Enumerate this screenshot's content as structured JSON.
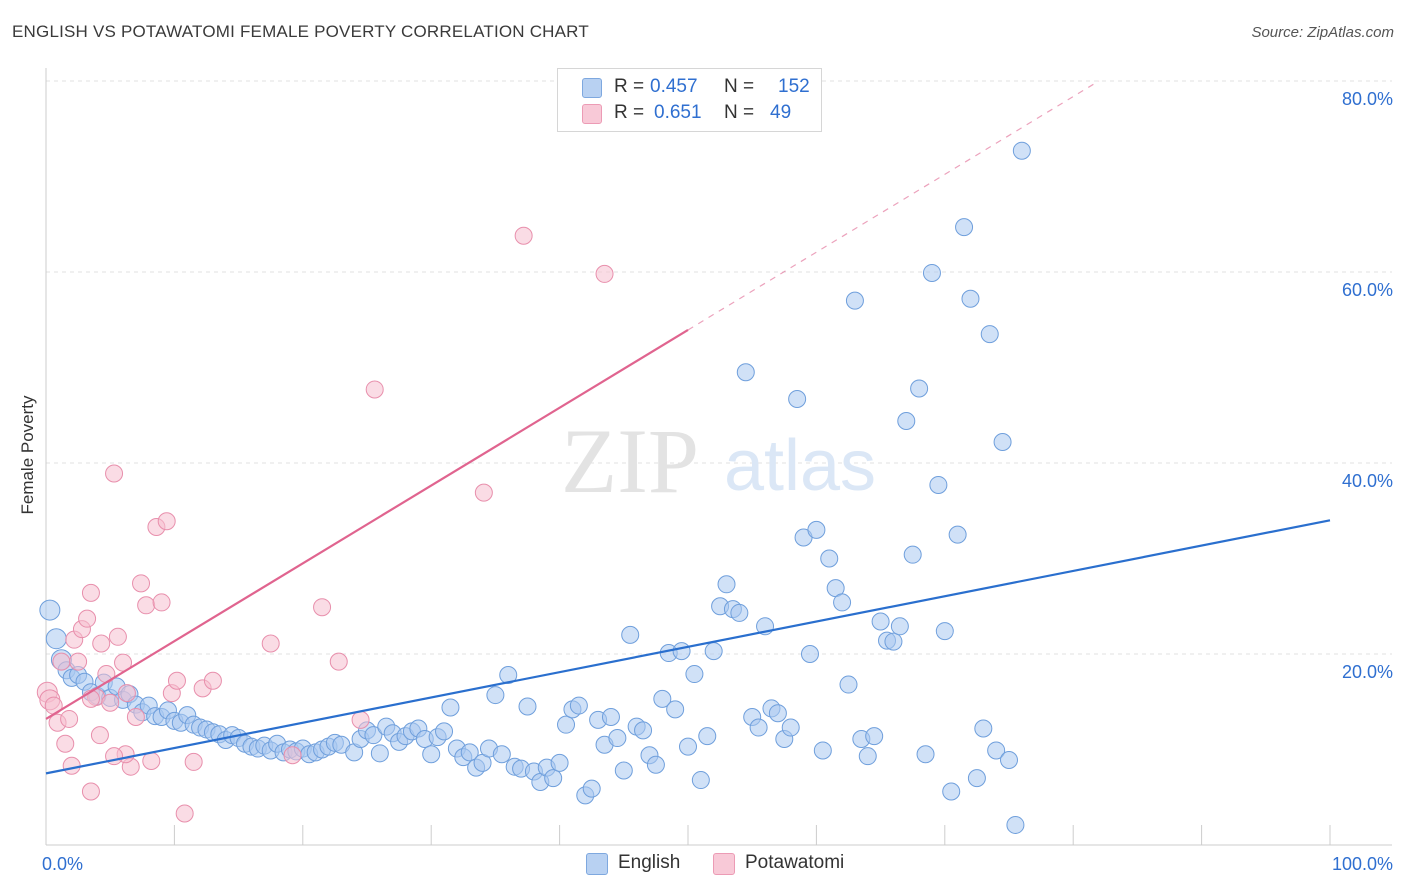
{
  "title": "ENGLISH VS POTAWATOMI FEMALE POVERTY CORRELATION CHART",
  "source": "Source: ZipAtlas.com",
  "watermark": {
    "zip": "ZIP",
    "atlas": "atlas"
  },
  "legend": {
    "rows": [
      {
        "r_label": "R =",
        "r_value": "0.457",
        "n_label": "N =",
        "n_value": "152"
      },
      {
        "r_label": "R =",
        "r_value": "0.651",
        "n_label": "N =",
        "n_value": "49"
      }
    ]
  },
  "bottom_legend": [
    {
      "label": "English"
    },
    {
      "label": "Potawatomi"
    }
  ],
  "chart_data": {
    "type": "scatter",
    "ylabel": "Female Poverty",
    "xlabel": "",
    "xlim": [
      0,
      100
    ],
    "ylim": [
      0,
      82
    ],
    "x_tick_labels": [
      "0.0%",
      "100.0%"
    ],
    "y_ticks": [
      {
        "value": 20,
        "label": "20.0%"
      },
      {
        "value": 40,
        "label": "40.0%"
      },
      {
        "value": 60,
        "label": "60.0%"
      },
      {
        "value": 80,
        "label": "80.0%"
      }
    ],
    "grid": true,
    "legend_position": "top-center",
    "series": [
      {
        "name": "English",
        "color": "#a9c8f0",
        "stroke": "#6f9fdc",
        "trend_color": "#2a6fce",
        "trend": {
          "x1": 0,
          "y1": 7.5,
          "x2": 100,
          "y2": 34.0,
          "dash_from": null
        },
        "points": [
          [
            0.3,
            24.6
          ],
          [
            0.8,
            21.6
          ],
          [
            1.2,
            19.4
          ],
          [
            1.6,
            18.3
          ],
          [
            2,
            17.5
          ],
          [
            2.5,
            17.8
          ],
          [
            3,
            17.1
          ],
          [
            3.5,
            16.0
          ],
          [
            4,
            15.6
          ],
          [
            4.5,
            17.0
          ],
          [
            5,
            15.4
          ],
          [
            5.5,
            16.6
          ],
          [
            6,
            15.2
          ],
          [
            6.5,
            15.8
          ],
          [
            7,
            14.7
          ],
          [
            7.5,
            13.9
          ],
          [
            8,
            14.6
          ],
          [
            8.5,
            13.5
          ],
          [
            9,
            13.4
          ],
          [
            9.5,
            14.1
          ],
          [
            10,
            13.0
          ],
          [
            10.5,
            12.8
          ],
          [
            11,
            13.6
          ],
          [
            11.5,
            12.6
          ],
          [
            12,
            12.3
          ],
          [
            12.5,
            12.1
          ],
          [
            13,
            11.8
          ],
          [
            13.5,
            11.6
          ],
          [
            14,
            11.0
          ],
          [
            14.5,
            11.5
          ],
          [
            15,
            11.2
          ],
          [
            15.5,
            10.6
          ],
          [
            16,
            10.3
          ],
          [
            16.5,
            10.1
          ],
          [
            17,
            10.4
          ],
          [
            17.5,
            9.9
          ],
          [
            18,
            10.6
          ],
          [
            18.5,
            9.7
          ],
          [
            19,
            10.0
          ],
          [
            19.5,
            9.8
          ],
          [
            20,
            10.1
          ],
          [
            20.5,
            9.5
          ],
          [
            21,
            9.7
          ],
          [
            21.5,
            10.0
          ],
          [
            22,
            10.3
          ],
          [
            22.5,
            10.7
          ],
          [
            23,
            10.5
          ],
          [
            24,
            9.7
          ],
          [
            24.5,
            11.1
          ],
          [
            25,
            12.0
          ],
          [
            25.5,
            11.5
          ],
          [
            26,
            9.6
          ],
          [
            26.5,
            12.4
          ],
          [
            27,
            11.7
          ],
          [
            27.5,
            10.8
          ],
          [
            28,
            11.4
          ],
          [
            28.5,
            11.9
          ],
          [
            29,
            12.2
          ],
          [
            29.5,
            11.1
          ],
          [
            30,
            9.5
          ],
          [
            30.5,
            11.3
          ],
          [
            31,
            11.9
          ],
          [
            31.5,
            14.4
          ],
          [
            32,
            10.1
          ],
          [
            32.5,
            9.2
          ],
          [
            33,
            9.7
          ],
          [
            33.5,
            8.1
          ],
          [
            34,
            8.6
          ],
          [
            34.5,
            10.1
          ],
          [
            35,
            15.7
          ],
          [
            35.5,
            9.5
          ],
          [
            36,
            17.8
          ],
          [
            36.5,
            8.2
          ],
          [
            37,
            8.0
          ],
          [
            37.5,
            14.5
          ],
          [
            38,
            7.7
          ],
          [
            38.5,
            6.6
          ],
          [
            39,
            8.1
          ],
          [
            39.5,
            7.0
          ],
          [
            40,
            8.6
          ],
          [
            40.5,
            12.6
          ],
          [
            41,
            14.2
          ],
          [
            41.5,
            14.6
          ],
          [
            42,
            5.2
          ],
          [
            42.5,
            5.9
          ],
          [
            43,
            13.1
          ],
          [
            43.5,
            10.5
          ],
          [
            44,
            13.4
          ],
          [
            44.5,
            11.2
          ],
          [
            45,
            7.8
          ],
          [
            45.5,
            22.0
          ],
          [
            46,
            12.4
          ],
          [
            46.5,
            12.0
          ],
          [
            47,
            9.4
          ],
          [
            47.5,
            8.4
          ],
          [
            48,
            15.3
          ],
          [
            48.5,
            20.1
          ],
          [
            49,
            14.2
          ],
          [
            49.5,
            20.3
          ],
          [
            50,
            10.3
          ],
          [
            50.5,
            17.9
          ],
          [
            51,
            6.8
          ],
          [
            51.5,
            11.4
          ],
          [
            52,
            20.3
          ],
          [
            52.5,
            25.0
          ],
          [
            53,
            27.3
          ],
          [
            53.5,
            24.7
          ],
          [
            54,
            24.3
          ],
          [
            54.5,
            49.5
          ],
          [
            55,
            13.4
          ],
          [
            55.5,
            12.3
          ],
          [
            56,
            22.9
          ],
          [
            56.5,
            14.3
          ],
          [
            57,
            13.8
          ],
          [
            57.5,
            11.1
          ],
          [
            58,
            12.3
          ],
          [
            58.5,
            46.7
          ],
          [
            59,
            32.2
          ],
          [
            59.5,
            20.0
          ],
          [
            60,
            33.0
          ],
          [
            60.5,
            9.9
          ],
          [
            61,
            30.0
          ],
          [
            61.5,
            26.9
          ],
          [
            62,
            25.4
          ],
          [
            62.5,
            16.8
          ],
          [
            63,
            57.0
          ],
          [
            63.5,
            11.1
          ],
          [
            64,
            9.3
          ],
          [
            64.5,
            11.4
          ],
          [
            65,
            23.4
          ],
          [
            65.5,
            21.4
          ],
          [
            66,
            21.3
          ],
          [
            66.5,
            22.9
          ],
          [
            67,
            44.4
          ],
          [
            67.5,
            30.4
          ],
          [
            68,
            47.8
          ],
          [
            68.5,
            9.5
          ],
          [
            69,
            59.9
          ],
          [
            69.5,
            37.7
          ],
          [
            70,
            22.4
          ],
          [
            70.5,
            5.6
          ],
          [
            71,
            32.5
          ],
          [
            71.5,
            64.7
          ],
          [
            72,
            57.2
          ],
          [
            72.5,
            7.0
          ],
          [
            73,
            12.2
          ],
          [
            73.5,
            53.5
          ],
          [
            74,
            9.9
          ],
          [
            74.5,
            42.2
          ],
          [
            75,
            8.9
          ],
          [
            75.5,
            2.1
          ],
          [
            76,
            72.7
          ]
        ]
      },
      {
        "name": "Potawatomi",
        "color": "#f6bfd0",
        "stroke": "#e88fac",
        "trend_color": "#e0648f",
        "trend": {
          "x1": 0,
          "y1": 13.2,
          "x2": 82,
          "y2": 80.0,
          "dash_from": 50
        },
        "points": [
          [
            0.1,
            16.0
          ],
          [
            0.3,
            15.2
          ],
          [
            0.6,
            14.6
          ],
          [
            0.9,
            12.8
          ],
          [
            1.2,
            19.2
          ],
          [
            1.5,
            10.6
          ],
          [
            1.8,
            13.2
          ],
          [
            2.2,
            21.5
          ],
          [
            2.5,
            19.2
          ],
          [
            2.8,
            22.6
          ],
          [
            3.2,
            23.7
          ],
          [
            3.5,
            26.4
          ],
          [
            3.9,
            15.5
          ],
          [
            4.3,
            21.1
          ],
          [
            4.7,
            17.9
          ],
          [
            5,
            14.9
          ],
          [
            5.3,
            38.9
          ],
          [
            5.6,
            21.8
          ],
          [
            6,
            19.1
          ],
          [
            6.3,
            15.9
          ],
          [
            6.6,
            8.2
          ],
          [
            7,
            13.4
          ],
          [
            7.4,
            27.4
          ],
          [
            7.8,
            25.1
          ],
          [
            8.2,
            8.8
          ],
          [
            8.6,
            33.3
          ],
          [
            9,
            25.4
          ],
          [
            9.4,
            33.9
          ],
          [
            9.8,
            15.9
          ],
          [
            10.2,
            17.2
          ],
          [
            10.8,
            3.3
          ],
          [
            11.5,
            8.7
          ],
          [
            12.2,
            16.4
          ],
          [
            13,
            17.2
          ],
          [
            17.5,
            21.1
          ],
          [
            19.2,
            9.4
          ],
          [
            21.5,
            24.9
          ],
          [
            22.8,
            19.2
          ],
          [
            24.5,
            13.1
          ],
          [
            25.6,
            47.7
          ],
          [
            34.1,
            36.9
          ],
          [
            37.2,
            63.8
          ],
          [
            43.5,
            59.8
          ],
          [
            2,
            8.3
          ],
          [
            3.5,
            5.6
          ],
          [
            4.2,
            11.5
          ],
          [
            6.2,
            9.5
          ],
          [
            5.3,
            9.3
          ],
          [
            3.5,
            15.3
          ]
        ]
      }
    ]
  }
}
